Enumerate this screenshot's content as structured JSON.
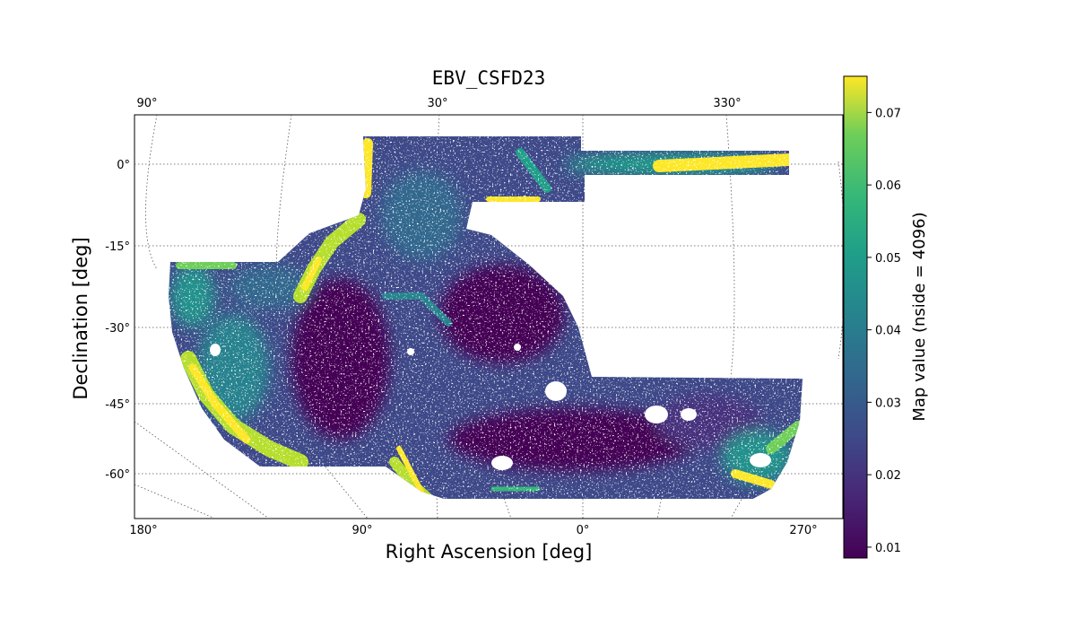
{
  "chart_data": {
    "type": "heatmap",
    "title": "EBV_CSFD23",
    "xlabel": "Right Ascension [deg]",
    "ylabel": "Declination [deg]",
    "colorbar_label": "Map value (nside = 4096)",
    "colormap": "viridis",
    "projection": "McBryde-Thomas flat-polar quartic",
    "grid": true,
    "x_ticks_bottom": [
      "180°",
      "90°",
      "0°",
      "270°"
    ],
    "x_ticks_top": [
      "90°",
      "30°",
      "330°"
    ],
    "y_ticks": [
      {
        "value": 0,
        "label": "0°"
      },
      {
        "value": -15,
        "label": "-15°"
      },
      {
        "value": -30,
        "label": "-30°"
      },
      {
        "value": -45,
        "label": "-45°"
      },
      {
        "value": -60,
        "label": "-60°"
      }
    ],
    "colorbar": {
      "min": 0.0085,
      "max": 0.075,
      "ticks": [
        {
          "value": 0.01,
          "label": "0.01"
        },
        {
          "value": 0.02,
          "label": "0.02"
        },
        {
          "value": 0.03,
          "label": "0.03"
        },
        {
          "value": 0.04,
          "label": "0.04"
        },
        {
          "value": 0.05,
          "label": "0.05"
        },
        {
          "value": 0.06,
          "label": "0.06"
        },
        {
          "value": 0.07,
          "label": "0.07"
        }
      ]
    },
    "colors": {
      "low": "#440154",
      "mid": "#21918c",
      "high": "#fde725"
    }
  }
}
